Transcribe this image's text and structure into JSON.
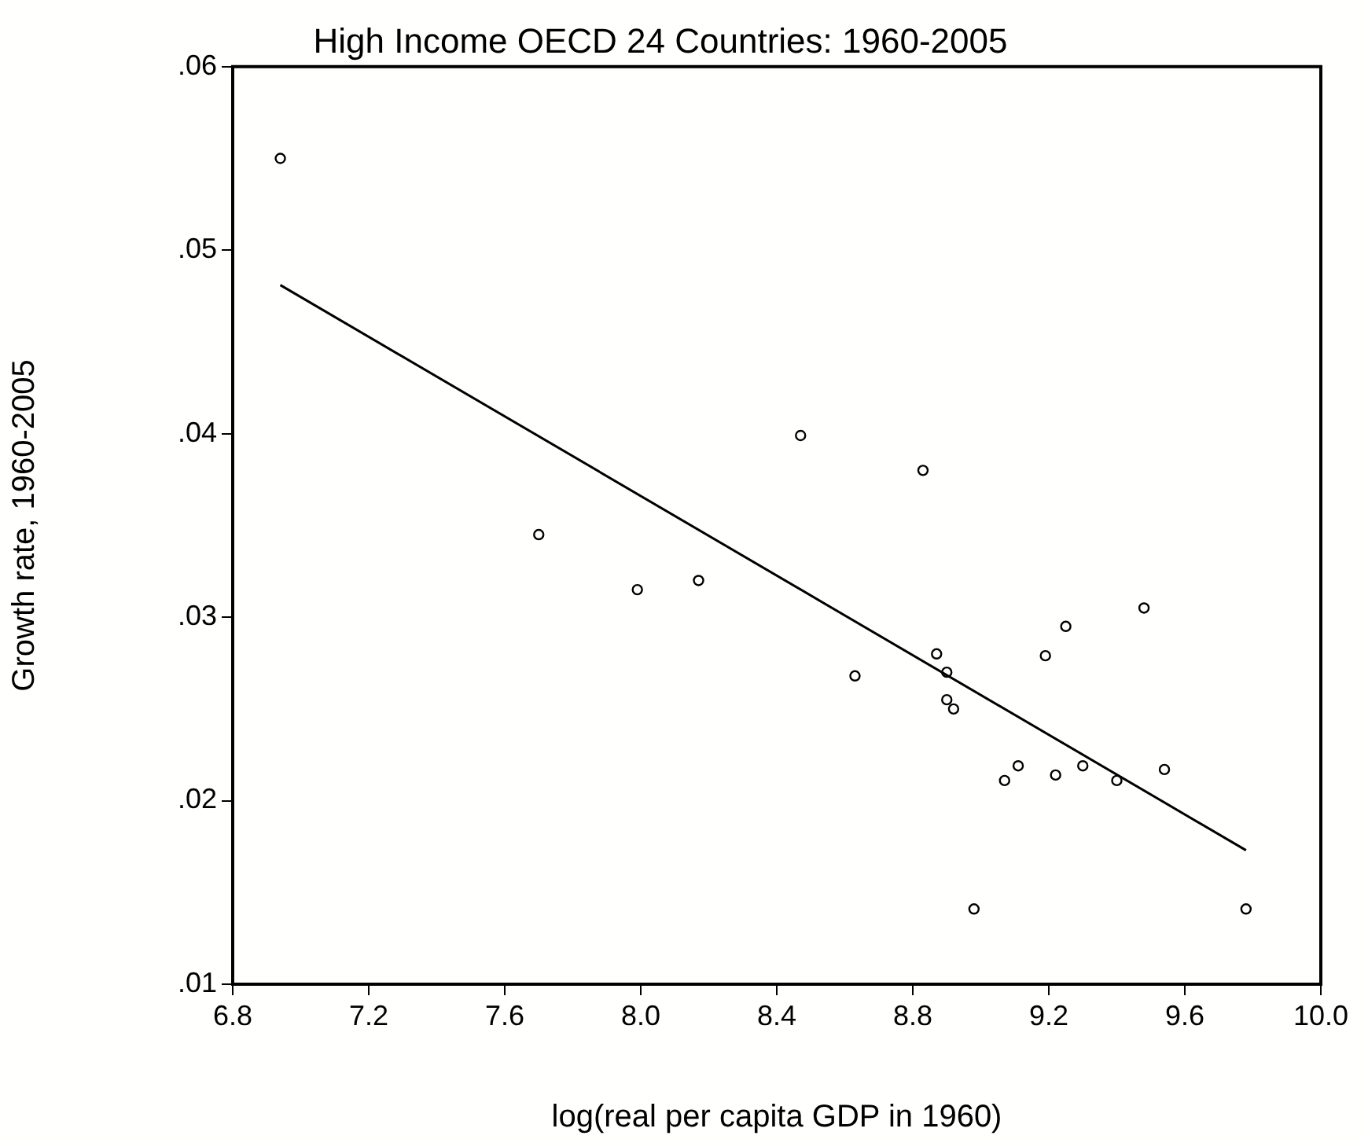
{
  "chart_data": {
    "type": "scatter",
    "title": "High Income OECD 24 Countries: 1960-2005",
    "xlabel": "log(real per capita GDP in 1960)",
    "ylabel": "Growth rate, 1960-2005",
    "xlim": [
      6.8,
      10
    ],
    "xticks": [
      6.8,
      7.2,
      7.6,
      {
        "value": 8,
        "label": "8.0"
      },
      8.4,
      8.8,
      9.2,
      9.6,
      {
        "value": 10,
        "label": "10.0"
      }
    ],
    "ylim": [
      0.01,
      0.06
    ],
    "yticks": [
      {
        "value": 0.01,
        "label": ".01"
      },
      {
        "value": 0.02,
        "label": ".02"
      },
      {
        "value": 0.03,
        "label": ".03"
      },
      {
        "value": 0.04,
        "label": ".04"
      },
      {
        "value": 0.05,
        "label": ".05"
      },
      {
        "value": 0.06,
        "label": ".06"
      }
    ],
    "grid": false,
    "legend": false,
    "marker": "circle",
    "series": [
      {
        "color": "#000000",
        "x": [
          6.94,
          7.7,
          7.99,
          8.17,
          8.47,
          8.83,
          9.48,
          9.25,
          8.87,
          9.19,
          8.63,
          8.9,
          8.9,
          8.92,
          9.11,
          9.07,
          9.22,
          9.3,
          9.4,
          9.54,
          8.98,
          9.78
        ],
        "values": [
          0.055,
          0.0345,
          0.0315,
          0.032,
          0.0399,
          0.038,
          0.0305,
          0.0295,
          0.028,
          0.0279,
          0.0268,
          0.027,
          0.0255,
          0.025,
          0.0219,
          0.0211,
          0.0214,
          0.0219,
          0.0211,
          0.0217,
          0.0141,
          0.0141
        ]
      },
      {
        "type": "line",
        "marker": "none",
        "color": "#000000",
        "x": [
          6.94,
          9.78
        ],
        "values": [
          0.0481,
          0.0173
        ]
      }
    ]
  }
}
